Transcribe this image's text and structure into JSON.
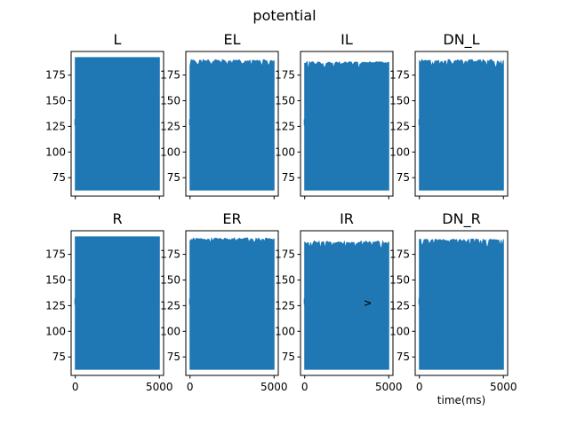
{
  "figure": {
    "title": "potential",
    "colors": {
      "series": "#1f77b4"
    }
  },
  "chart_data": [
    {
      "type": "line",
      "title": "L",
      "xlim": [
        -250,
        5250
      ],
      "ylim": [
        57,
        198
      ],
      "xticks": [
        0,
        5000
      ],
      "yticks": [
        75,
        100,
        125,
        150,
        175
      ],
      "series": [
        {
          "values_band": {
            "min": 63,
            "max": 192,
            "roughness": 0
          }
        }
      ],
      "show_xticklabels": false,
      "show_yticklabels": true,
      "xlabel": "",
      "ylabel": ""
    },
    {
      "type": "line",
      "title": "EL",
      "xlim": [
        -250,
        5250
      ],
      "ylim": [
        57,
        198
      ],
      "xticks": [
        0,
        5000
      ],
      "yticks": [
        75,
        100,
        125,
        150,
        175
      ],
      "series": [
        {
          "values_band": {
            "min": 63,
            "max": 190,
            "roughness": 7
          }
        }
      ],
      "show_xticklabels": false,
      "show_yticklabels": true,
      "xlabel": "",
      "ylabel": ""
    },
    {
      "type": "line",
      "title": "IL",
      "xlim": [
        -250,
        5250
      ],
      "ylim": [
        57,
        198
      ],
      "xticks": [
        0,
        5000
      ],
      "yticks": [
        75,
        100,
        125,
        150,
        175
      ],
      "series": [
        {
          "values_band": {
            "min": 63,
            "max": 188,
            "roughness": 9
          }
        }
      ],
      "show_xticklabels": false,
      "show_yticklabels": true,
      "xlabel": "",
      "ylabel": ""
    },
    {
      "type": "line",
      "title": "DN_L",
      "xlim": [
        -250,
        5250
      ],
      "ylim": [
        57,
        198
      ],
      "xticks": [
        0,
        5000
      ],
      "yticks": [
        75,
        100,
        125,
        150,
        175
      ],
      "series": [
        {
          "values_band": {
            "min": 63,
            "max": 190,
            "roughness": 8
          }
        }
      ],
      "show_xticklabels": false,
      "show_yticklabels": true,
      "xlabel": "",
      "ylabel": ""
    },
    {
      "type": "line",
      "title": "R",
      "xlim": [
        -250,
        5250
      ],
      "ylim": [
        57,
        198
      ],
      "xticks": [
        0,
        5000
      ],
      "yticks": [
        75,
        100,
        125,
        150,
        175
      ],
      "series": [
        {
          "values_band": {
            "min": 63,
            "max": 192,
            "roughness": 0
          }
        }
      ],
      "show_xticklabels": true,
      "show_yticklabels": true,
      "xlabel": "",
      "ylabel": ""
    },
    {
      "type": "line",
      "title": "ER",
      "xlim": [
        -250,
        5250
      ],
      "ylim": [
        57,
        198
      ],
      "xticks": [
        0,
        5000
      ],
      "yticks": [
        75,
        100,
        125,
        150,
        175
      ],
      "series": [
        {
          "values_band": {
            "min": 63,
            "max": 191,
            "roughness": 6
          }
        }
      ],
      "show_xticklabels": true,
      "show_yticklabels": true,
      "xlabel": "",
      "ylabel": ""
    },
    {
      "type": "line",
      "title": "IR",
      "xlim": [
        -250,
        5250
      ],
      "ylim": [
        57,
        198
      ],
      "xticks": [
        0,
        5000
      ],
      "yticks": [
        75,
        100,
        125,
        150,
        175
      ],
      "series": [
        {
          "values_band": {
            "min": 63,
            "max": 188,
            "roughness": 8
          }
        }
      ],
      "show_xticklabels": true,
      "show_yticklabels": true,
      "xlabel": "",
      "ylabel": ""
    },
    {
      "type": "line",
      "title": "DN_R",
      "xlim": [
        -250,
        5250
      ],
      "ylim": [
        57,
        198
      ],
      "xticks": [
        0,
        5000
      ],
      "yticks": [
        75,
        100,
        125,
        150,
        175
      ],
      "series": [
        {
          "values_band": {
            "min": 63,
            "max": 190,
            "roughness": 8
          }
        }
      ],
      "show_xticklabels": true,
      "show_yticklabels": true,
      "xlabel": "time(ms)",
      "ylabel": "v"
    }
  ]
}
